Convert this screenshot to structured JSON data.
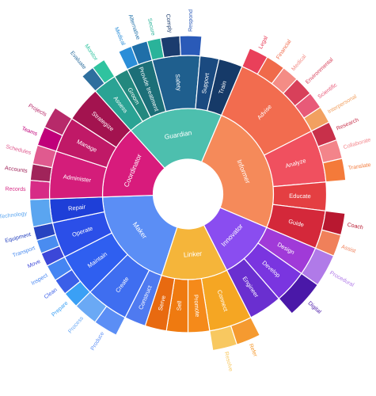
{
  "chart_data": {
    "type": "sunburst",
    "center_label": "",
    "roles": [
      {
        "name": "Maker",
        "color": "#5b8ef5",
        "weight": 70,
        "children": [
          {
            "name": "Construct",
            "color": "#4f7af0",
            "weight": 9,
            "leaves": []
          },
          {
            "name": "Create",
            "color": "#3f6ef0",
            "weight": 18,
            "leaves": [
              {
                "name": "Produce",
                "color": "#5b8ef5",
                "weight": 9
              },
              {
                "name": "Process",
                "color": "#6aa9f5",
                "weight": 9
              }
            ]
          },
          {
            "name": "Maintain",
            "color": "#2f5ff0",
            "weight": 18,
            "leaves": [
              {
                "name": "Prepare",
                "color": "#3aa0f5",
                "weight": 6
              },
              {
                "name": "Clean",
                "color": "#3b5fe8",
                "weight": 6
              },
              {
                "name": "Inspect",
                "color": "#4585f2",
                "weight": 6
              }
            ]
          },
          {
            "name": "Operate",
            "color": "#2b4fe8",
            "weight": 15,
            "leaves": [
              {
                "name": "Move",
                "color": "#3b47d8",
                "weight": 5
              },
              {
                "name": "Transport",
                "color": "#4a8cf0",
                "weight": 5
              },
              {
                "name": "Equipment",
                "color": "#2744c0",
                "weight": 5
              }
            ]
          },
          {
            "name": "Repair",
            "color": "#1e3fd8",
            "weight": 10,
            "leaves": [
              {
                "name": "Technology",
                "color": "#5aa5f0",
                "weight": 6
              }
            ]
          }
        ]
      },
      {
        "name": "Coordinator",
        "color": "#d81b7c",
        "weight": 50,
        "children": [
          {
            "name": "Administer",
            "color": "#d41d7a",
            "weight": 20,
            "leaves": [
              {
                "name": "Records",
                "color": "#d72b86",
                "weight": 7
              },
              {
                "name": "Accounts",
                "color": "#a0245a",
                "weight": 6
              },
              {
                "name": "Schedules",
                "color": "#e05a8f",
                "weight": 7
              }
            ]
          },
          {
            "name": "Manage",
            "color": "#c01967",
            "weight": 15,
            "leaves": [
              {
                "name": "Teams",
                "color": "#c0007a",
                "weight": 7
              },
              {
                "name": "Projects",
                "color": "#b72a6a",
                "weight": 8
              }
            ]
          },
          {
            "name": "Strategize",
            "color": "#a3134f",
            "weight": 15,
            "leaves": []
          }
        ]
      },
      {
        "name": "Guardian",
        "color": "#4dbfae",
        "weight": 65,
        "children": [
          {
            "name": "Assess",
            "color": "#2aa394",
            "weight": 10,
            "leaves": [
              {
                "name": "Evaluate",
                "color": "#2e6f9e",
                "weight": 5
              },
              {
                "name": "Monitor",
                "color": "#2fc39f",
                "weight": 5
              }
            ]
          },
          {
            "name": "Groom",
            "color": "#23887e",
            "weight": 6,
            "leaves": []
          },
          {
            "name": "Provide treatment",
            "color": "#1c6f78",
            "weight": 11,
            "leaves": [
              {
                "name": "Medical",
                "color": "#2b8ed8",
                "weight": 5
              },
              {
                "name": "Alternative",
                "color": "#1f6fa8",
                "weight": 6
              }
            ]
          },
          {
            "name": "Safety",
            "color": "#1f5f8e",
            "weight": 20,
            "leaves": [
              {
                "name": "Secure",
                "color": "#2ab39a",
                "weight": 5
              },
              {
                "name": "Comply",
                "color": "#1b3c6e",
                "weight": 7
              },
              {
                "name": "Respond",
                "color": "#2a5ab8",
                "weight": 8
              }
            ]
          },
          {
            "name": "Support",
            "color": "#1a4a80",
            "weight": 8,
            "leaves": []
          },
          {
            "name": "Train",
            "color": "#163a68",
            "weight": 10,
            "leaves": []
          }
        ]
      },
      {
        "name": "Informer",
        "color": "#f58a5a",
        "weight": 90,
        "children": [
          {
            "name": "Advise",
            "color": "#f26c4f",
            "weight": 40,
            "leaves": [
              {
                "name": "Legal",
                "color": "#e9405a",
                "weight": 8
              },
              {
                "name": "Financial",
                "color": "#f06a4a",
                "weight": 8
              },
              {
                "name": "Medical",
                "color": "#f48c85",
                "weight": 7
              },
              {
                "name": "Environmental",
                "color": "#d8405a",
                "weight": 8
              },
              {
                "name": "Scientific",
                "color": "#e85a78",
                "weight": 7
              },
              {
                "name": "Interpersonal",
                "color": "#f2a060",
                "weight": 7
              }
            ]
          },
          {
            "name": "Analyze",
            "color": "#f0505f",
            "weight": 22,
            "leaves": [
              {
                "name": "Research",
                "color": "#c8304a",
                "weight": 7
              },
              {
                "name": "Collaborate",
                "color": "#f3848a",
                "weight": 7
              },
              {
                "name": "Translate",
                "color": "#f47a3a",
                "weight": 8
              }
            ]
          },
          {
            "name": "Educate",
            "color": "#e43f42",
            "weight": 12,
            "leaves": []
          },
          {
            "name": "Guide",
            "color": "#d4283a",
            "weight": 16,
            "leaves": [
              {
                "name": "Coach",
                "color": "#b81830",
                "weight": 8
              },
              {
                "name": "Assist",
                "color": "#f0805a",
                "weight": 8
              }
            ]
          }
        ]
      },
      {
        "name": "Innovator",
        "color": "#8a4df0",
        "weight": 40,
        "children": [
          {
            "name": "Design",
            "color": "#a03ad8",
            "weight": 12,
            "leaves": [
              {
                "name": "Procedural",
                "color": "#b07ae8",
                "weight": 6
              }
            ]
          },
          {
            "name": "Develop",
            "color": "#7a35e0",
            "weight": 14,
            "leaves": [
              {
                "name": "Digital",
                "color": "#4a18a8",
                "weight": 7
              }
            ]
          },
          {
            "name": "Engineer",
            "color": "#6a2fd0",
            "weight": 14,
            "leaves": []
          }
        ]
      },
      {
        "name": "Linker",
        "color": "#f5b53a",
        "weight": 45,
        "children": [
          {
            "name": "Connect",
            "color": "#f5a623",
            "weight": 18,
            "leaves": [
              {
                "name": "Refer",
                "color": "#f59a30",
                "weight": 7
              },
              {
                "name": "Resolve",
                "color": "#f8c860",
                "weight": 7
              }
            ]
          },
          {
            "name": "Promote",
            "color": "#f58a1a",
            "weight": 9,
            "leaves": []
          },
          {
            "name": "Sell",
            "color": "#ef7a10",
            "weight": 9,
            "leaves": []
          },
          {
            "name": "Serve",
            "color": "#e86a10",
            "weight": 9,
            "leaves": []
          }
        ]
      }
    ]
  }
}
